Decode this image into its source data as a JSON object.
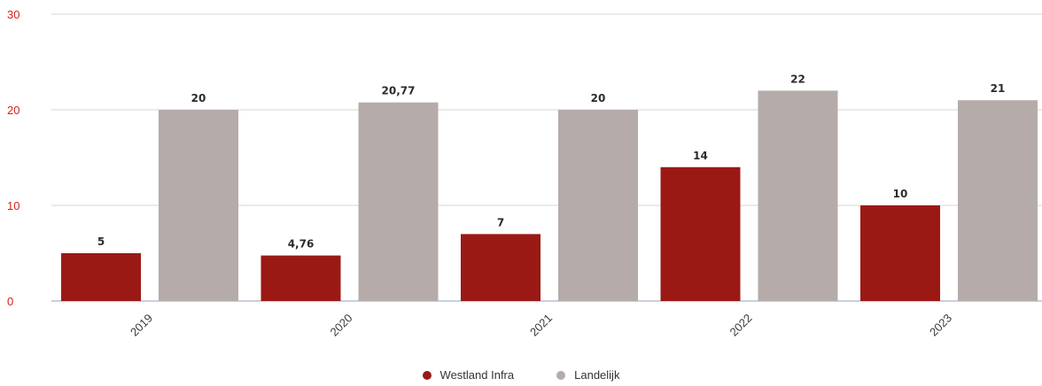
{
  "chart_data": {
    "type": "bar",
    "title": "",
    "xlabel": "",
    "ylabel": "",
    "categories": [
      "2019",
      "2020",
      "2021",
      "2022",
      "2023"
    ],
    "series": [
      {
        "name": "Westland Infra",
        "color": "#9b1915",
        "values": [
          5,
          4.76,
          7,
          14,
          10
        ],
        "labels": [
          "5",
          "4,76",
          "7",
          "14",
          "10"
        ]
      },
      {
        "name": "Landelijk",
        "color": "#b5acaa",
        "values": [
          20,
          20.77,
          20,
          22,
          21
        ],
        "labels": [
          "20",
          "20,77",
          "20",
          "22",
          "21"
        ]
      }
    ],
    "ylim": [
      0,
      30
    ],
    "yticks": [
      "0",
      "10",
      "20",
      "30"
    ],
    "ytick_color": "#d61f1f",
    "grid": true,
    "legend_position": "bottom-center"
  }
}
